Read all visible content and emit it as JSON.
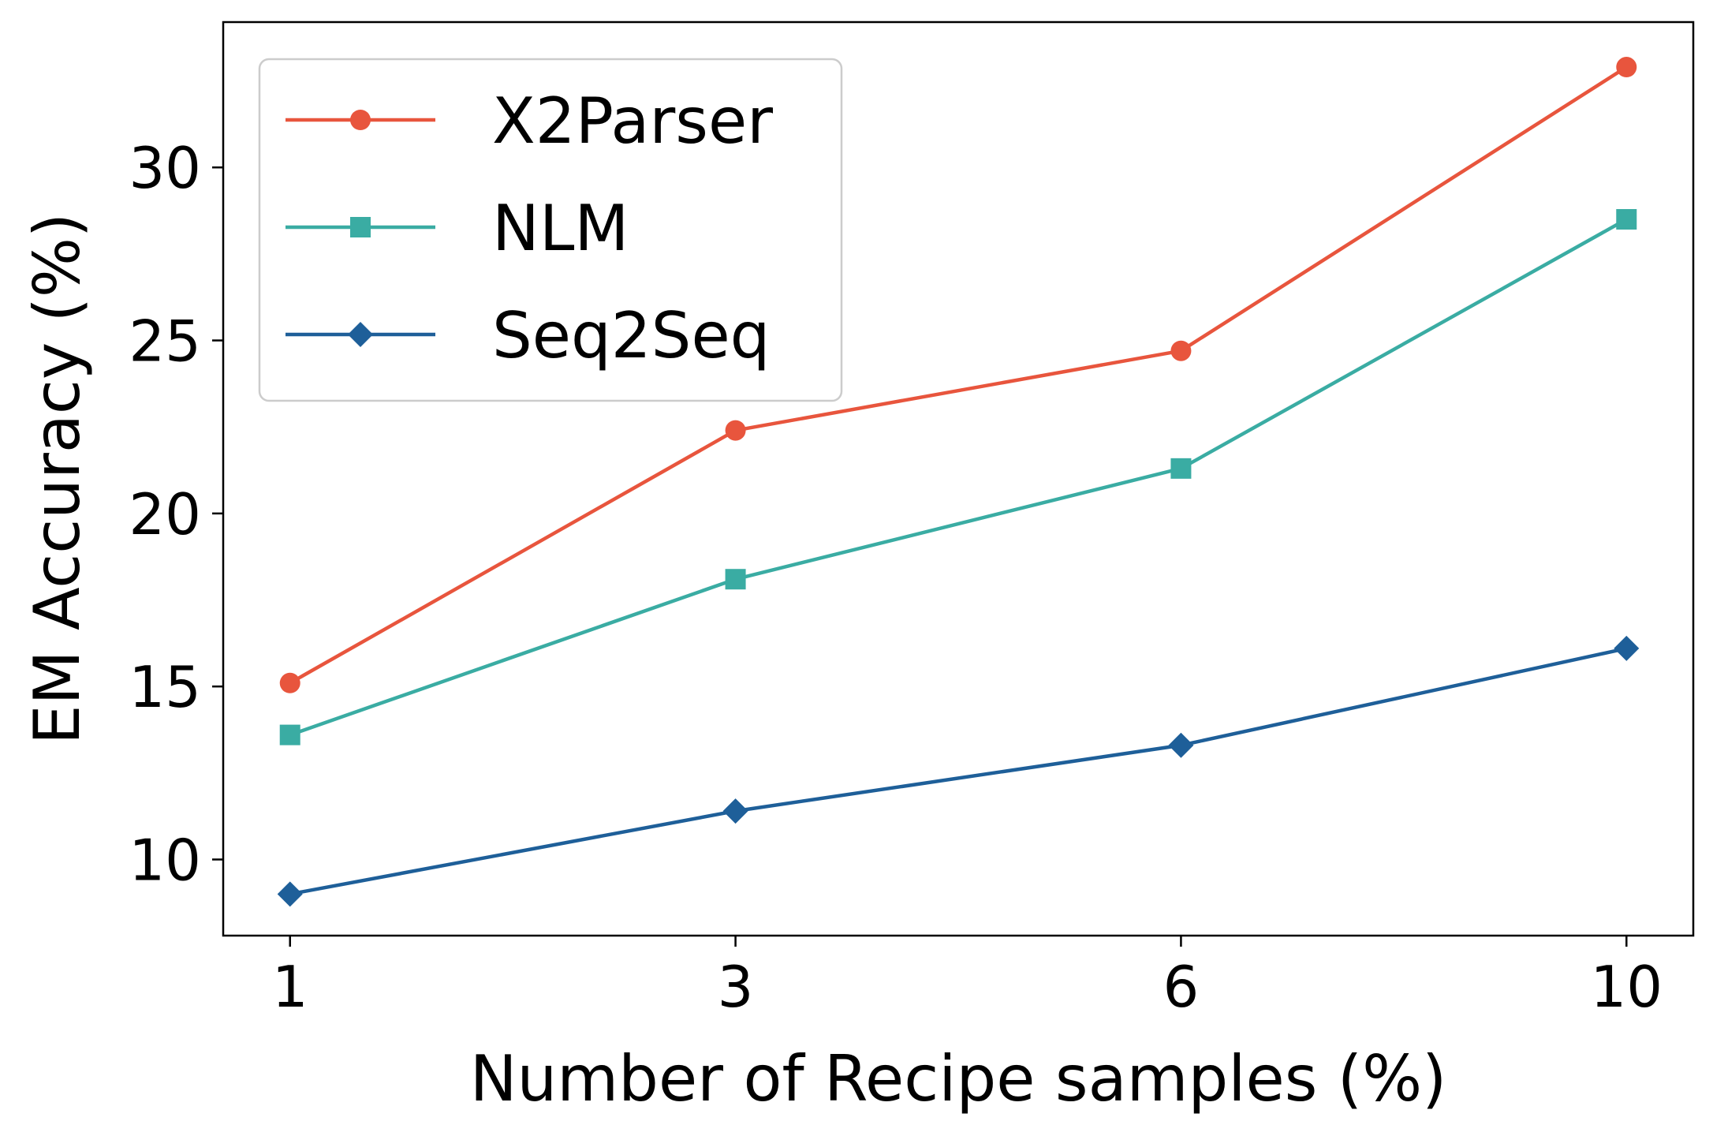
{
  "chart_data": {
    "type": "line",
    "title": "",
    "xlabel": "Number of Recipe samples (%)",
    "ylabel": "EM Accuracy (%)",
    "categories": [
      "1",
      "3",
      "6",
      "10"
    ],
    "xlim": [
      -0.15,
      3.15
    ],
    "ylim": [
      7.8,
      34.2
    ],
    "yticks": [
      10,
      15,
      20,
      25,
      30
    ],
    "grid": false,
    "legend": "top-left",
    "series": [
      {
        "name": "X2Parser",
        "marker": "circle",
        "color": "#e8553d",
        "values": [
          15.1,
          22.4,
          24.7,
          32.9
        ]
      },
      {
        "name": "NLM",
        "marker": "square",
        "color": "#3aaca3",
        "values": [
          13.6,
          18.1,
          21.3,
          28.5
        ]
      },
      {
        "name": "Seq2Seq",
        "marker": "diamond",
        "color": "#1e5f99",
        "values": [
          9.0,
          11.4,
          13.3,
          16.1
        ]
      }
    ]
  }
}
